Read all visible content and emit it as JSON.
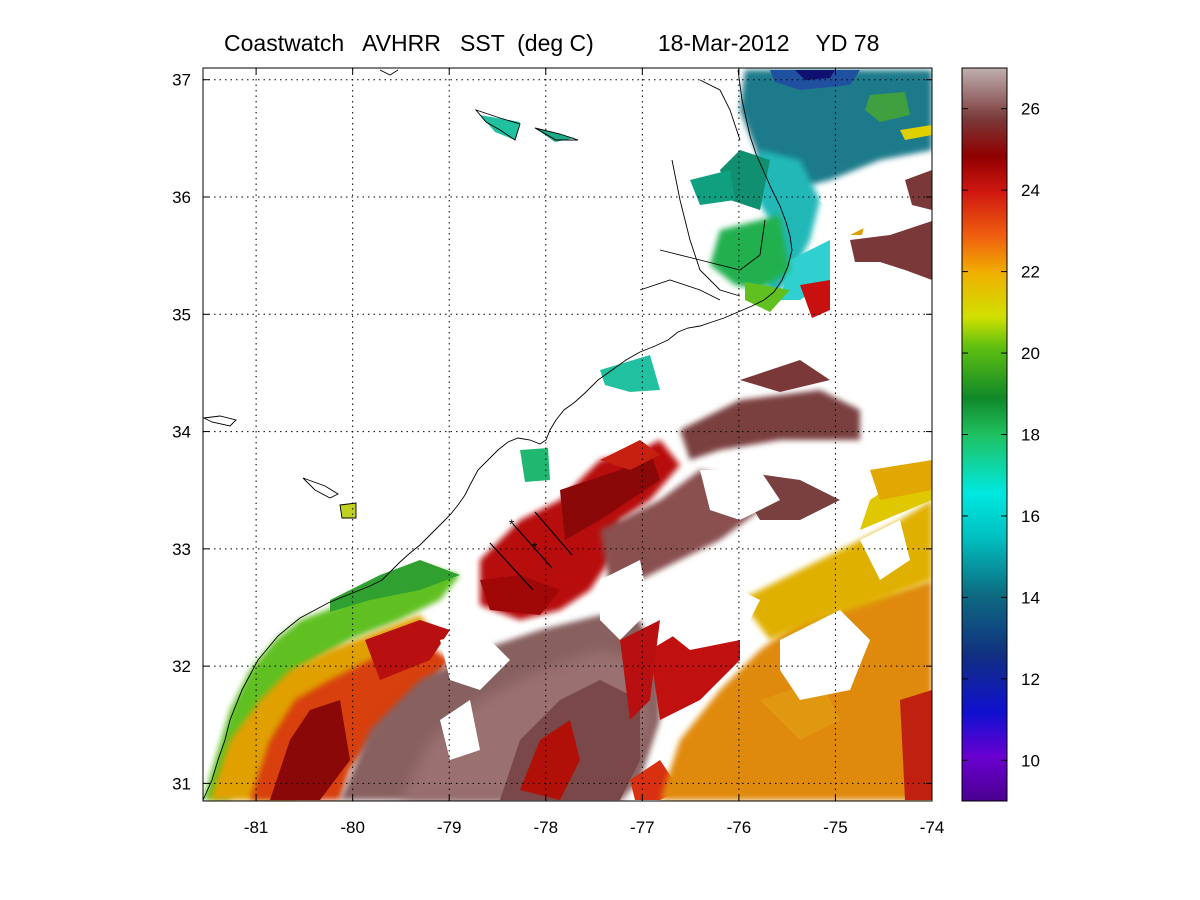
{
  "title": {
    "product": "Coastwatch   AVHRR   SST  (deg C)",
    "date": "18-Mar-2012",
    "yearday": "YD 78"
  },
  "map": {
    "lon_range": [
      -81.55,
      -74.0
    ],
    "lat_range": [
      30.85,
      37.1
    ],
    "x_ticks": [
      "-81",
      "-80",
      "-79",
      "-78",
      "-77",
      "-76",
      "-75",
      "-74"
    ],
    "y_ticks": [
      "37",
      "36",
      "35",
      "34",
      "33",
      "32",
      "31"
    ],
    "grid": "dotted"
  },
  "colorbar": {
    "range": [
      9,
      27
    ],
    "ticks": [
      "26",
      "24",
      "22",
      "20",
      "18",
      "16",
      "14",
      "12",
      "10"
    ]
  },
  "colors": {
    "cold": "#5a00a0",
    "mid": "#00e0e0",
    "warm": "#b00000",
    "hot": "#b8a8a8"
  }
}
